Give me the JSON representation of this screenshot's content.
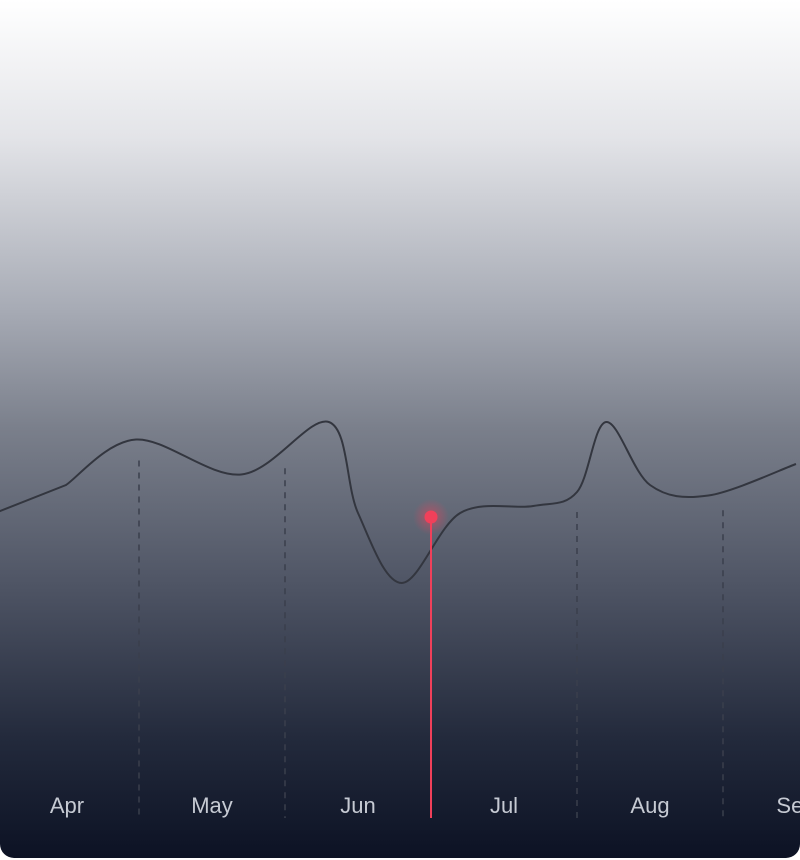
{
  "chart_data": {
    "type": "line",
    "title": "",
    "xlabel": "",
    "ylabel": "",
    "categories": [
      "Apr",
      "May",
      "Jun",
      "Jul",
      "Aug",
      "Sep"
    ],
    "series": [
      {
        "values": [
          {
            "x": 0.0,
            "y": 58
          },
          {
            "x": 0.48,
            "y": 71
          },
          {
            "x": 1.2,
            "y": 61
          },
          {
            "x": 1.8,
            "y": 76
          },
          {
            "x": 2.0,
            "y": 50
          },
          {
            "x": 2.3,
            "y": 30
          },
          {
            "x": 2.7,
            "y": 50
          },
          {
            "x": 3.2,
            "y": 52
          },
          {
            "x": 3.5,
            "y": 56
          },
          {
            "x": 3.7,
            "y": 76
          },
          {
            "x": 4.0,
            "y": 58
          },
          {
            "x": 4.4,
            "y": 55
          },
          {
            "x": 5.0,
            "y": 64
          }
        ]
      }
    ],
    "highlight": {
      "x": 2.5,
      "y": 50,
      "color": "#f0405a"
    },
    "gridlines_x": [
      0.5,
      1.5,
      2.5,
      3.5,
      4.5
    ],
    "line_color": "#33363f"
  }
}
